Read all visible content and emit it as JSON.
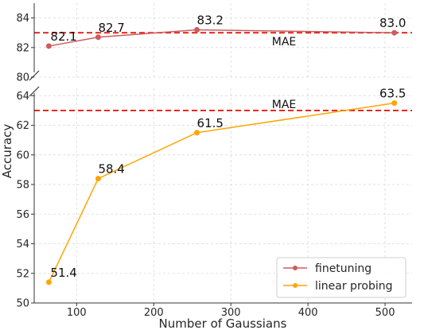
{
  "chart_data": {
    "type": "line",
    "xlabel": "Number of Gaussians",
    "ylabel": "Accuracy",
    "x": [
      64,
      128,
      256,
      512
    ],
    "series": [
      {
        "name": "finetuning",
        "color": "#cd5c5c",
        "values": [
          82.1,
          82.7,
          83.2,
          83.0
        ],
        "labels": [
          "82.1",
          "82.7",
          "83.2",
          "83.0"
        ],
        "panel": "top"
      },
      {
        "name": "linear probing",
        "color": "#ffa500",
        "values": [
          51.4,
          58.4,
          61.5,
          63.5
        ],
        "labels": [
          "51.4",
          "58.4",
          "61.5",
          "63.5"
        ],
        "panel": "bottom"
      }
    ],
    "reference_line": {
      "label": "MAE",
      "value": 83.0,
      "color": "#e8190f",
      "style": "dashed"
    },
    "panels": [
      {
        "name": "top",
        "ylim": [
          80,
          85
        ],
        "yticks": [
          80,
          82,
          84
        ]
      },
      {
        "name": "bottom",
        "ylim": [
          50,
          64.5
        ],
        "yticks": [
          50,
          52,
          54,
          56,
          58,
          60,
          62,
          64
        ]
      }
    ],
    "xlim": [
      45,
      535
    ],
    "xticks": [
      100,
      200,
      300,
      400,
      500
    ],
    "broken_y_axis": true,
    "grid": true,
    "legend_position": "lower-right"
  }
}
